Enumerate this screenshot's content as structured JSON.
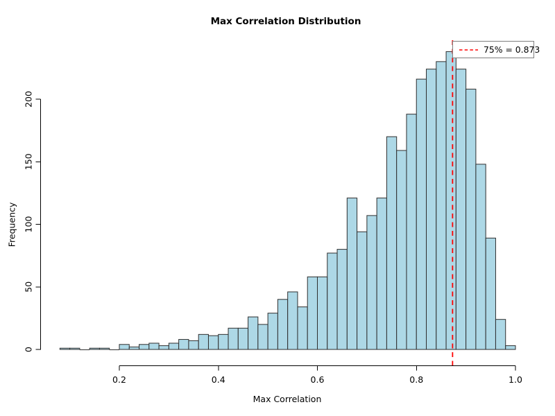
{
  "chart_data": {
    "type": "bar",
    "subtype": "histogram",
    "title": "Max Correlation Distribution",
    "xlabel": "Max Correlation",
    "ylabel": "Frequency",
    "bin_start": 0.08,
    "bin_width": 0.02,
    "counts": [
      1,
      1,
      0,
      1,
      1,
      0,
      4,
      2,
      4,
      5,
      3,
      5,
      8,
      7,
      12,
      11,
      12,
      17,
      17,
      26,
      20,
      29,
      40,
      46,
      34,
      58,
      58,
      77,
      80,
      121,
      94,
      107,
      121,
      170,
      159,
      188,
      216,
      224,
      230,
      238,
      224,
      208,
      148,
      89,
      24,
      3
    ],
    "xlim": [
      0.08,
      1.0
    ],
    "ylim": [
      0,
      240
    ],
    "x_ticks": [
      0.2,
      0.4,
      0.6,
      0.8,
      1.0
    ],
    "x_tick_labels": [
      "0.2",
      "0.4",
      "0.6",
      "0.8",
      "1.0"
    ],
    "y_ticks": [
      0,
      50,
      100,
      150,
      200
    ],
    "y_tick_labels": [
      "0",
      "50",
      "100",
      "150",
      "200"
    ],
    "grid": false,
    "percentile_line": {
      "value": 0.873,
      "percentile": "75%",
      "color": "#ff0000",
      "style": "dashed"
    },
    "legend": {
      "position": "top-right",
      "label": "75% = 0.873"
    },
    "colors": {
      "bar_fill": "#ADD8E6",
      "bar_stroke": "#2e2e2e",
      "axis": "#000000",
      "line": "#ff0000",
      "legend_border": "#7f7f7f",
      "background": "#ffffff"
    }
  }
}
